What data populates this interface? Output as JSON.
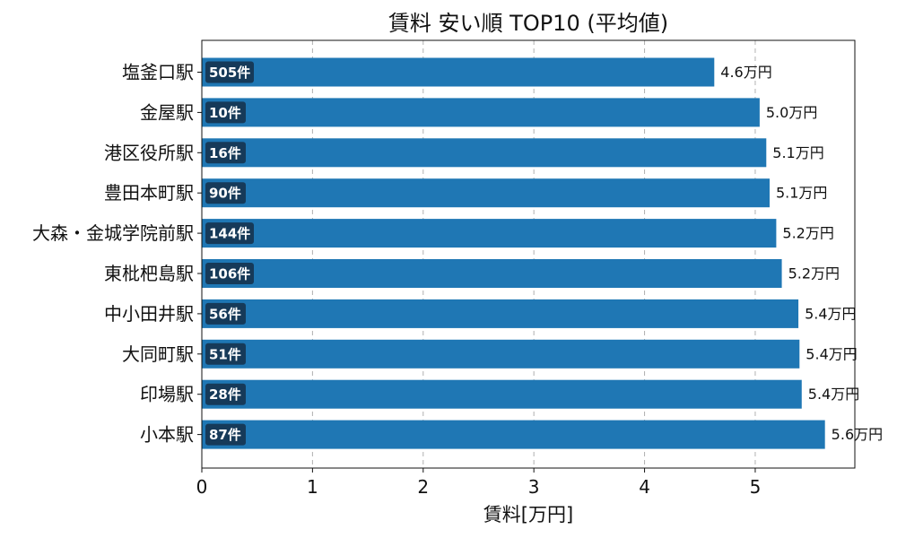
{
  "chart_data": {
    "type": "bar",
    "orientation": "horizontal",
    "title": "賃料 安い順 TOP10 (平均値)",
    "xlabel": "賃料[万円]",
    "ylabel": "",
    "xlim": [
      0,
      5.9
    ],
    "xticks": [
      0,
      1,
      2,
      3,
      4,
      5
    ],
    "grid": "x-dashed",
    "bar_color": "#1f77b4",
    "badge_color": "#163a59",
    "categories": [
      "塩釜口駅",
      "金屋駅",
      "港区役所駅",
      "豊田本町駅",
      "大森・金城学院前駅",
      "東枇杷島駅",
      "中小田井駅",
      "大同町駅",
      "印場駅",
      "小本駅"
    ],
    "values": [
      4.63,
      5.04,
      5.1,
      5.13,
      5.19,
      5.24,
      5.39,
      5.4,
      5.42,
      5.63
    ],
    "value_labels": [
      "4.6万円",
      "5.0万円",
      "5.1万円",
      "5.1万円",
      "5.2万円",
      "5.2万円",
      "5.4万円",
      "5.4万円",
      "5.4万円",
      "5.6万円"
    ],
    "count_labels": [
      "505件",
      "10件",
      "16件",
      "90件",
      "144件",
      "106件",
      "56件",
      "51件",
      "28件",
      "87件"
    ]
  }
}
